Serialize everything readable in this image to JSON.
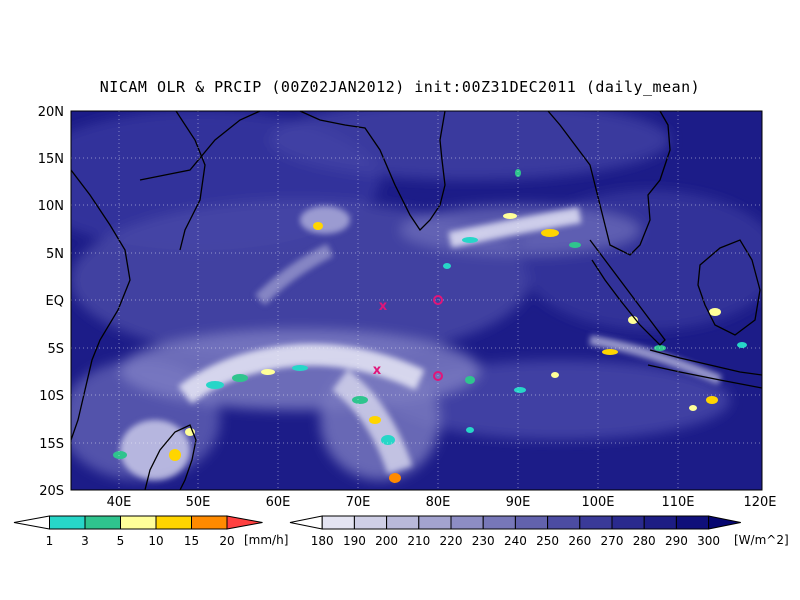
{
  "title": "NICAM OLR & PRCIP (00Z02JAN2012) init:00Z31DEC2011 (daily_mean)",
  "map": {
    "lat_labels": [
      "20N",
      "15N",
      "10N",
      "5N",
      "EQ",
      "5S",
      "10S",
      "15S",
      "20S"
    ],
    "lon_labels": [
      "40E",
      "50E",
      "60E",
      "70E",
      "80E",
      "90E",
      "100E",
      "110E",
      "120E"
    ],
    "markers": [
      {
        "symbol": "x",
        "label": "x-marker-73E-1S"
      },
      {
        "symbol": "x",
        "label": "x-marker-73E-7S"
      },
      {
        "symbol": "o",
        "label": "o-marker-80E-EQ"
      },
      {
        "symbol": "o",
        "label": "o-marker-80E-8S"
      }
    ]
  },
  "legend_precip": {
    "ticks": [
      "1",
      "3",
      "5",
      "10",
      "15",
      "20"
    ],
    "unit": "[mm/h]",
    "colors": [
      "#ffffff",
      "#27d6c8",
      "#2fc48e",
      "#ffff99",
      "#ffd500",
      "#ff8a00",
      "#ff4040"
    ]
  },
  "legend_olr": {
    "ticks": [
      "180",
      "190",
      "200",
      "210",
      "220",
      "230",
      "240",
      "250",
      "260",
      "270",
      "280",
      "290",
      "300"
    ],
    "unit": "[W/m^2]",
    "colors": [
      "#ffffff",
      "#e4e4f2",
      "#cfcfe6",
      "#b9b9da",
      "#a3a3cf",
      "#8d8dc4",
      "#7777b8",
      "#6262ad",
      "#4c4ca2",
      "#3a3a98",
      "#2a2a8e",
      "#1d1d84",
      "#10107a",
      "#060670"
    ]
  }
}
